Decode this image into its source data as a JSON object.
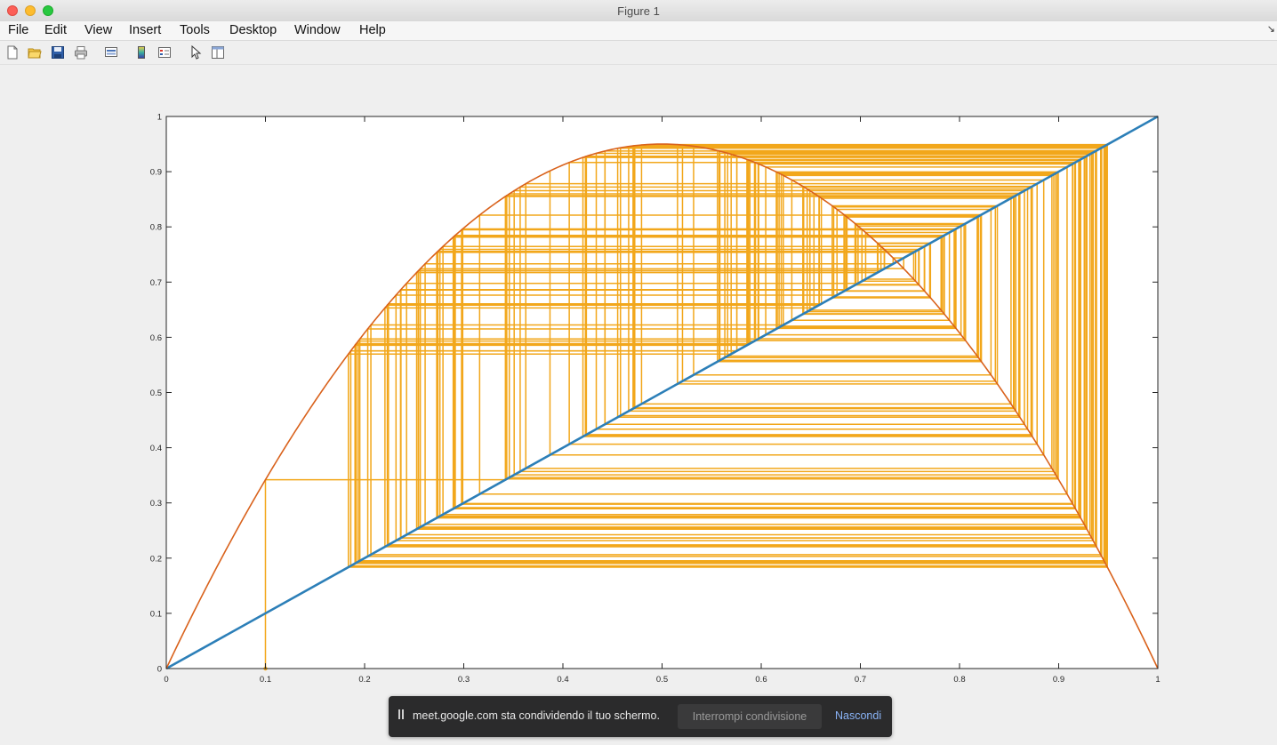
{
  "window": {
    "title": "Figure 1"
  },
  "menu": {
    "items": [
      "File",
      "Edit",
      "View",
      "Insert",
      "Tools",
      "Desktop",
      "Window",
      "Help"
    ]
  },
  "toolbar": {
    "buttons": [
      {
        "name": "new-figure-icon"
      },
      {
        "name": "open-file-icon"
      },
      {
        "name": "save-icon"
      },
      {
        "name": "print-icon"
      },
      {
        "name": "link-plot-icon"
      },
      {
        "name": "colorbar-icon"
      },
      {
        "name": "legend-icon"
      },
      {
        "name": "edit-plot-pointer-icon"
      },
      {
        "name": "property-editor-icon"
      }
    ]
  },
  "chart_data": {
    "type": "line",
    "title": "",
    "xlabel": "",
    "ylabel": "",
    "xlim": [
      0,
      1
    ],
    "ylim": [
      0,
      1
    ],
    "xticks": [
      "0",
      "0.1",
      "0.2",
      "0.3",
      "0.4",
      "0.5",
      "0.6",
      "0.7",
      "0.8",
      "0.9",
      "1"
    ],
    "yticks": [
      "0",
      "0.1",
      "0.2",
      "0.3",
      "0.4",
      "0.5",
      "0.6",
      "0.7",
      "0.8",
      "0.9",
      "1"
    ],
    "grid": false,
    "series": [
      {
        "kind": "identity",
        "function": "y = x",
        "color": "#2c7fb8"
      },
      {
        "kind": "logistic-map",
        "function": "y = r*x*(1-x)",
        "r": 3.8,
        "color": "#d9621c"
      },
      {
        "kind": "cobweb",
        "x0": 0.1,
        "iterations": 200,
        "color": "#f2a71b"
      }
    ]
  },
  "share_banner": {
    "message": "meet.google.com sta condividendo il tuo schermo.",
    "stop_label": "Interrompi condivisione",
    "hide_label": "Nascondi"
  }
}
